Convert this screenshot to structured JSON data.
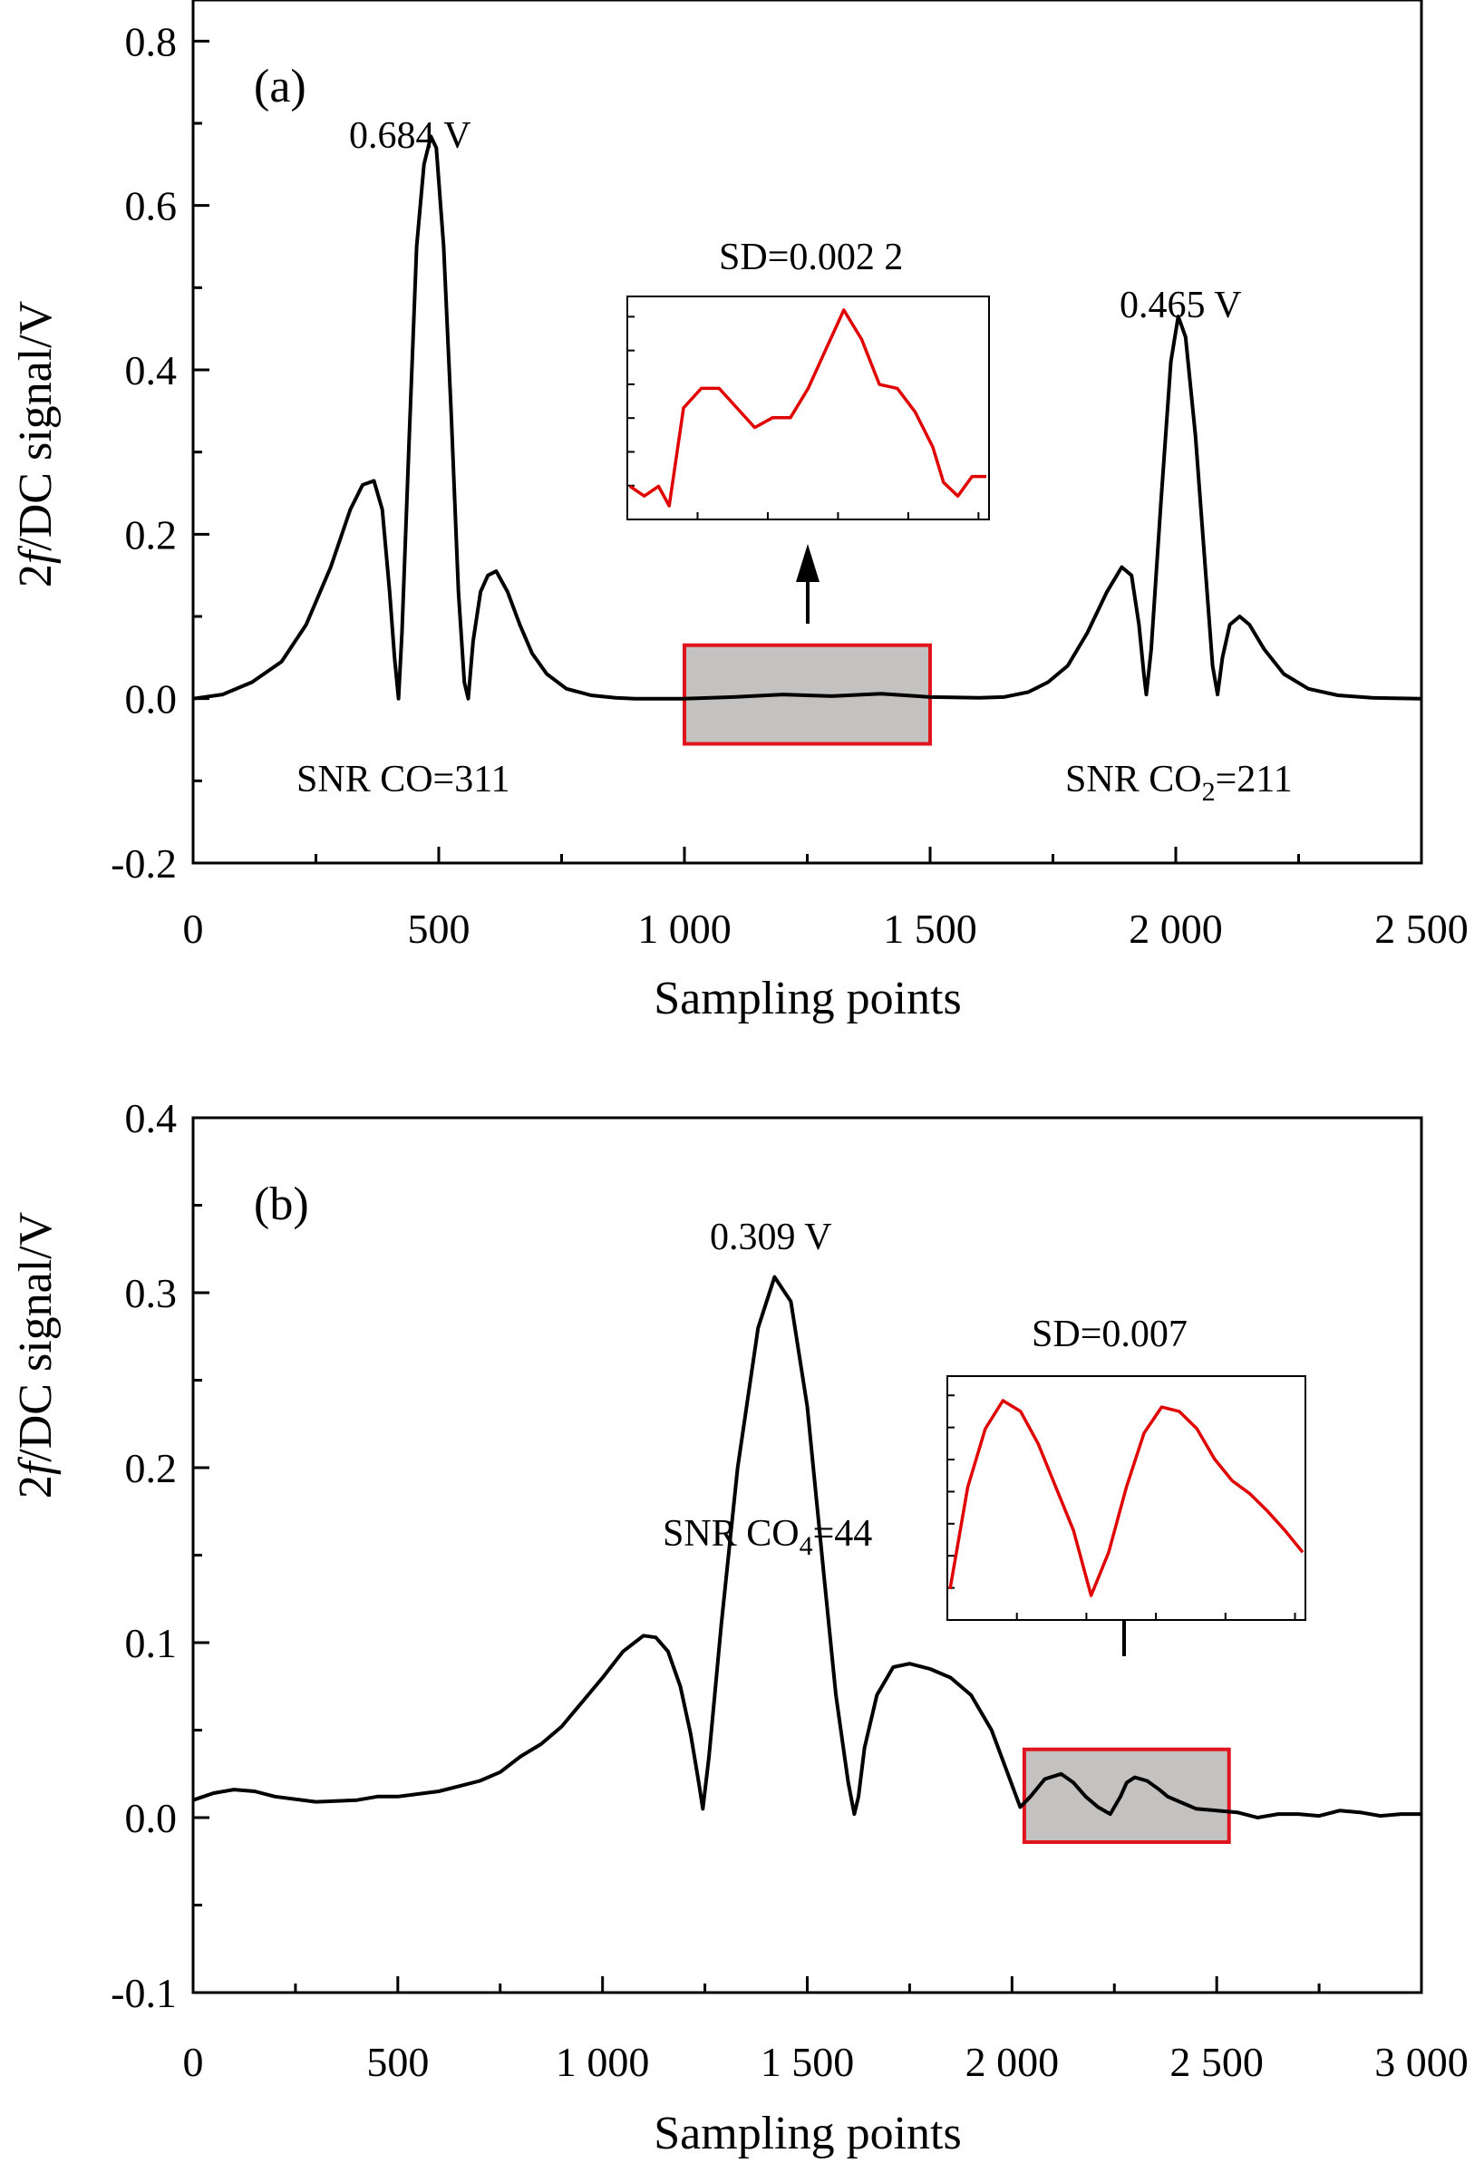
{
  "chart_data": [
    {
      "type": "line",
      "panel_label": "(a)",
      "xlabel": "Sampling points",
      "ylabel_prefix": "2",
      "ylabel_italic": "f",
      "ylabel_suffix": "/DC signal/V",
      "xlim": [
        0,
        2500
      ],
      "ylim": [
        -0.2,
        0.85
      ],
      "xticks": [
        0,
        500,
        1000,
        1500,
        2000,
        2500
      ],
      "xtick_labels": [
        "0",
        "500",
        "1 000",
        "1 500",
        "2 000",
        "2 500"
      ],
      "yticks": [
        -0.2,
        0.0,
        0.2,
        0.4,
        0.6,
        0.8
      ],
      "ytick_labels": [
        "-0.2",
        "0.0",
        "0.2",
        "0.4",
        "0.6",
        "0.8"
      ],
      "series": [
        {
          "color": "#000000",
          "x": [
            0,
            60,
            120,
            180,
            230,
            280,
            320,
            345,
            368,
            385,
            400,
            410,
            418,
            425,
            440,
            455,
            470,
            484,
            495,
            510,
            525,
            540,
            552,
            560,
            570,
            585,
            600,
            617,
            640,
            665,
            690,
            720,
            760,
            810,
            860,
            900,
            1000,
            1100,
            1200,
            1300,
            1400,
            1500,
            1600,
            1650,
            1700,
            1740,
            1780,
            1820,
            1860,
            1890,
            1910,
            1925,
            1935,
            1940,
            1950,
            1970,
            1990,
            2005,
            2020,
            2040,
            2060,
            2075,
            2085,
            2095,
            2110,
            2130,
            2150,
            2180,
            2220,
            2270,
            2330,
            2400,
            2500
          ],
          "y": [
            0.0,
            0.005,
            0.02,
            0.045,
            0.09,
            0.16,
            0.23,
            0.26,
            0.265,
            0.23,
            0.13,
            0.05,
            0.0,
            0.08,
            0.32,
            0.55,
            0.65,
            0.684,
            0.67,
            0.55,
            0.35,
            0.13,
            0.02,
            0.0,
            0.07,
            0.13,
            0.15,
            0.155,
            0.13,
            0.09,
            0.055,
            0.03,
            0.012,
            0.004,
            0.001,
            0.0,
            0.0,
            0.002,
            0.005,
            0.003,
            0.006,
            0.002,
            0.001,
            0.002,
            0.008,
            0.02,
            0.04,
            0.08,
            0.13,
            0.16,
            0.15,
            0.09,
            0.03,
            0.005,
            0.06,
            0.24,
            0.41,
            0.465,
            0.44,
            0.32,
            0.16,
            0.04,
            0.005,
            0.05,
            0.09,
            0.1,
            0.09,
            0.06,
            0.03,
            0.012,
            0.004,
            0.001,
            0.0
          ]
        }
      ],
      "annotations": {
        "peak1": "0.684 V",
        "peak2": "0.465 V",
        "snr1": "SNR CO=311",
        "snr2_pre": "SNR CO",
        "snr2_sub": "2",
        "snr2_post": "=211",
        "sd": "SD=0.002 2"
      },
      "highlight_box": {
        "x": [
          1000,
          1500
        ],
        "y": [
          -0.055,
          0.065
        ]
      },
      "inset": {
        "color": "#e00000",
        "x": [
          0,
          4,
          8,
          11,
          15,
          20,
          25,
          30,
          35,
          40,
          45,
          50,
          55,
          60,
          65,
          70,
          75,
          80,
          85,
          88,
          92,
          96,
          100
        ],
        "y": [
          0.1,
          0.05,
          0.1,
          0.0,
          0.5,
          0.6,
          0.6,
          0.5,
          0.4,
          0.45,
          0.45,
          0.6,
          0.8,
          1.0,
          0.85,
          0.62,
          0.6,
          0.48,
          0.3,
          0.12,
          0.05,
          0.15,
          0.15
        ]
      }
    },
    {
      "type": "line",
      "panel_label": "(b)",
      "xlabel": "Sampling points",
      "ylabel_prefix": "2",
      "ylabel_italic": "f",
      "ylabel_suffix": "/DC signal/V",
      "xlim": [
        0,
        3000
      ],
      "ylim": [
        -0.1,
        0.4
      ],
      "xticks": [
        0,
        500,
        1000,
        1500,
        2000,
        2500,
        3000
      ],
      "xtick_labels": [
        "0",
        "500",
        "1 000",
        "1 500",
        "2 000",
        "2 500",
        "3 000"
      ],
      "yticks": [
        -0.1,
        0.0,
        0.1,
        0.2,
        0.3,
        0.4
      ],
      "ytick_labels": [
        "-0.1",
        "0.0",
        "0.1",
        "0.2",
        "0.3",
        "0.4"
      ],
      "series": [
        {
          "color": "#000000",
          "x": [
            0,
            50,
            100,
            150,
            200,
            300,
            400,
            450,
            500,
            600,
            650,
            700,
            750,
            800,
            850,
            900,
            950,
            1000,
            1050,
            1100,
            1130,
            1160,
            1190,
            1215,
            1235,
            1245,
            1260,
            1290,
            1330,
            1380,
            1420,
            1460,
            1500,
            1540,
            1570,
            1600,
            1615,
            1625,
            1640,
            1670,
            1710,
            1750,
            1800,
            1850,
            1900,
            1950,
            1990,
            2020,
            2045,
            2080,
            2120,
            2150,
            2180,
            2210,
            2240,
            2265,
            2280,
            2300,
            2330,
            2360,
            2380,
            2410,
            2450,
            2500,
            2550,
            2600,
            2650,
            2700,
            2750,
            2800,
            2850,
            2900,
            2950,
            3000
          ],
          "y": [
            0.01,
            0.014,
            0.016,
            0.015,
            0.012,
            0.009,
            0.01,
            0.012,
            0.012,
            0.015,
            0.018,
            0.021,
            0.026,
            0.035,
            0.042,
            0.052,
            0.066,
            0.08,
            0.095,
            0.104,
            0.103,
            0.095,
            0.075,
            0.048,
            0.02,
            0.005,
            0.035,
            0.11,
            0.2,
            0.28,
            0.309,
            0.295,
            0.235,
            0.14,
            0.07,
            0.02,
            0.002,
            0.012,
            0.04,
            0.07,
            0.086,
            0.088,
            0.085,
            0.08,
            0.07,
            0.05,
            0.025,
            0.006,
            0.012,
            0.022,
            0.025,
            0.02,
            0.012,
            0.006,
            0.002,
            0.012,
            0.02,
            0.023,
            0.021,
            0.016,
            0.012,
            0.009,
            0.005,
            0.004,
            0.003,
            0.0,
            0.002,
            0.002,
            0.001,
            0.004,
            0.003,
            0.001,
            0.002,
            0.002
          ]
        }
      ],
      "annotations": {
        "peak1": "0.309 V",
        "snr1_pre": "SNR CO",
        "snr1_sub": "4",
        "snr1_post": "=44",
        "sd": "SD=0.007"
      },
      "highlight_box": {
        "x": [
          2030,
          2530
        ],
        "y": [
          -0.014,
          0.039
        ]
      },
      "inset": {
        "color": "#e00000",
        "x": [
          0,
          5,
          10,
          15,
          20,
          25,
          30,
          35,
          40,
          45,
          50,
          55,
          60,
          65,
          70,
          75,
          80,
          85,
          90,
          95,
          100
        ],
        "y": [
          0.08,
          0.55,
          0.82,
          0.95,
          0.9,
          0.75,
          0.55,
          0.35,
          0.05,
          0.25,
          0.55,
          0.8,
          0.92,
          0.9,
          0.82,
          0.68,
          0.58,
          0.52,
          0.44,
          0.35,
          0.25
        ]
      }
    }
  ]
}
